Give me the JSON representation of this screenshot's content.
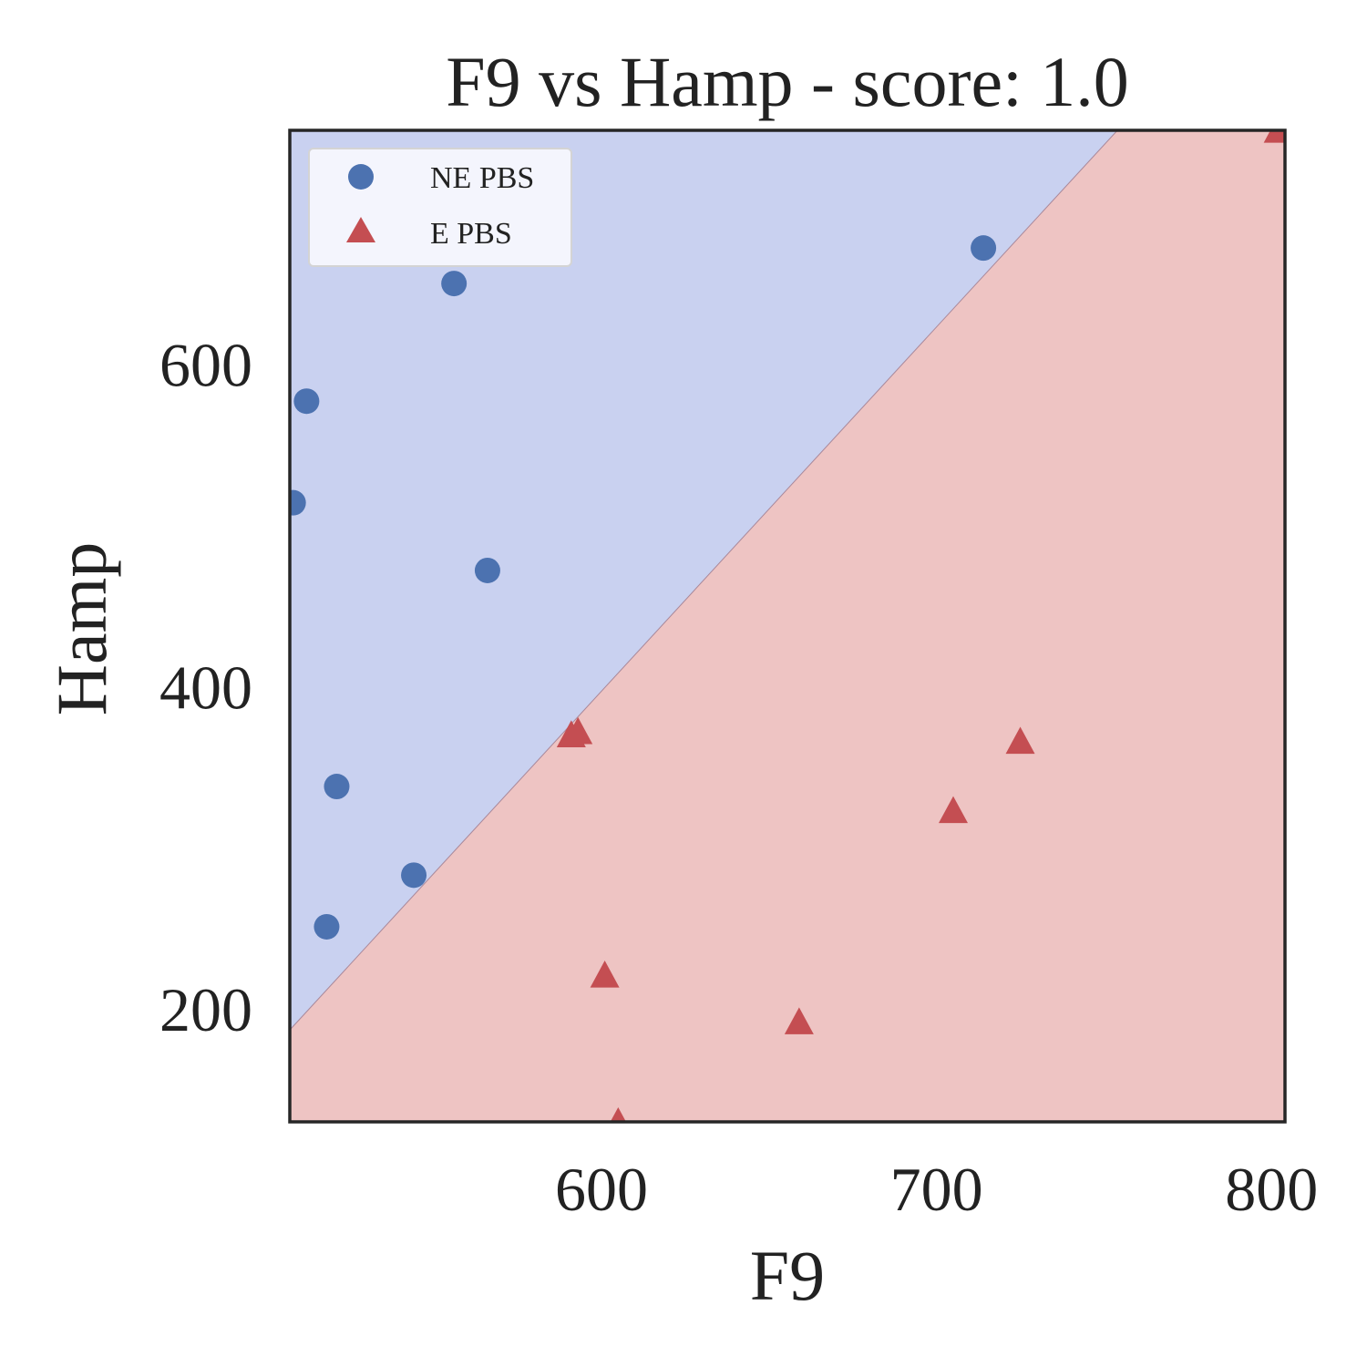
{
  "colors": {
    "ne_region": "#c9d1f0",
    "e_region": "#eec4c3",
    "ne_marker": "#4c72b0",
    "e_marker": "#c44e52",
    "frame": "#262626",
    "text": "#222222"
  },
  "chart_data": {
    "type": "scatter",
    "title": "F9 vs Hamp - score: 1.0",
    "xlabel": "F9",
    "ylabel": "Hamp",
    "xlim": [
      507,
      804
    ],
    "ylim": [
      130,
      745
    ],
    "xticks": [
      600,
      700,
      800
    ],
    "yticks": [
      200,
      400,
      600
    ],
    "grid": false,
    "legend_position": "top-left",
    "decision_boundary": {
      "description": "linear boundary",
      "points": [
        [
          507,
          187
        ],
        [
          754,
          745
        ]
      ]
    },
    "regions": [
      {
        "name": "NE PBS",
        "side": "above boundary",
        "color_key": "ne_region"
      },
      {
        "name": "E PBS",
        "side": "below boundary",
        "color_key": "e_region"
      }
    ],
    "series": [
      {
        "name": "NE PBS",
        "marker": "circle",
        "color_key": "ne_marker",
        "points": [
          [
            508,
            514
          ],
          [
            512,
            577
          ],
          [
            521,
            338
          ],
          [
            518,
            251
          ],
          [
            544,
            283
          ],
          [
            556,
            650
          ],
          [
            566,
            472
          ],
          [
            714,
            672
          ]
        ]
      },
      {
        "name": "E PBS",
        "marker": "triangle",
        "color_key": "e_marker",
        "points": [
          [
            591,
            370
          ],
          [
            593,
            372
          ],
          [
            601,
            221
          ],
          [
            605,
            130
          ],
          [
            659,
            192
          ],
          [
            705,
            323
          ],
          [
            725,
            366
          ],
          [
            802,
            745
          ]
        ]
      }
    ]
  }
}
